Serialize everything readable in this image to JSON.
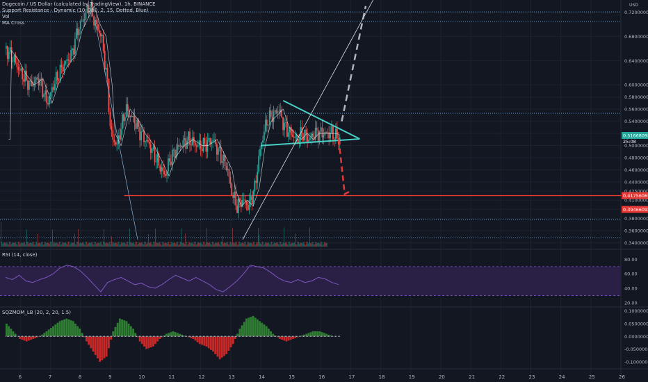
{
  "legend": {
    "symbol": "Dogecoin / US Dollar (calculated by TradingView), 1h, BINANCE",
    "indicator1": "Support Resistance - Dynamic (10, 300, 2, 15, Dotted, Blue)",
    "indicator2": "Vol",
    "indicator3": "MA Cross"
  },
  "currency": "USD",
  "price_axis": [
    "0.72000000",
    "0.68000000",
    "0.64000000",
    "0.60000000",
    "0.58000000",
    "0.56000000",
    "0.54000000",
    "0.52000000",
    "0.50000000",
    "0.48000000",
    "0.46000000",
    "0.44000000",
    "0.42500000",
    "0.41000000",
    "0.39500000",
    "0.38000000",
    "0.36000000",
    "0.34000000"
  ],
  "price_badges": {
    "current": "0.51668095",
    "countdown": "25:08",
    "support": "0.41756065",
    "lower": "0.39466092"
  },
  "rsi": {
    "title": "RSI (14, close)",
    "axis": [
      "80.00",
      "60.00",
      "40.00",
      "20.00"
    ],
    "upper": 70,
    "lower": 30
  },
  "sqzmom": {
    "title": "SQZMOM_LB (20, 2, 20, 1.5)",
    "axis": [
      "0.10000000",
      "0.05000000",
      "0.00000000",
      "-0.05000000",
      "-0.10000000"
    ]
  },
  "time_axis": [
    "6",
    "7",
    "8",
    "9",
    "10",
    "11",
    "12",
    "13",
    "14",
    "15",
    "16",
    "17",
    "18",
    "19",
    "20",
    "21",
    "22",
    "23",
    "24",
    "25",
    "26"
  ],
  "chart_data": {
    "type": "candlestick",
    "xlabel": "",
    "ylabel": "",
    "x_range": [
      5.5,
      26
    ],
    "ylim": [
      0.33,
      0.74
    ],
    "price_series": {
      "x": [
        5.5,
        5.8,
        6.0,
        6.3,
        6.6,
        6.9,
        7.1,
        7.4,
        7.7,
        7.9,
        8.1,
        8.3,
        8.5,
        8.7,
        8.9,
        9.0,
        9.2,
        9.5,
        9.8,
        10.0,
        10.3,
        10.6,
        10.8,
        11.0,
        11.3,
        11.6,
        11.9,
        12.1,
        12.4,
        12.6,
        12.9,
        13.0,
        13.2,
        13.4,
        13.6,
        13.8,
        14.0,
        14.2,
        14.4,
        14.6,
        14.8,
        15.0,
        15.2,
        15.4,
        15.6,
        15.8,
        16.0,
        16.2,
        16.4,
        16.6
      ],
      "close": [
        0.66,
        0.64,
        0.62,
        0.6,
        0.61,
        0.57,
        0.6,
        0.63,
        0.65,
        0.69,
        0.71,
        0.73,
        0.7,
        0.68,
        0.6,
        0.52,
        0.5,
        0.56,
        0.54,
        0.52,
        0.5,
        0.47,
        0.45,
        0.48,
        0.5,
        0.51,
        0.5,
        0.5,
        0.51,
        0.49,
        0.46,
        0.43,
        0.4,
        0.41,
        0.4,
        0.43,
        0.5,
        0.54,
        0.55,
        0.56,
        0.53,
        0.52,
        0.51,
        0.52,
        0.51,
        0.52,
        0.52,
        0.52,
        0.52,
        0.51
      ]
    },
    "horizontal_levels": [
      0.41756,
      0.7204,
      0.7044,
      0.5532,
      0.3775,
      0.3479
    ],
    "drawings": {
      "triangle_upper": [
        [
          14.75,
          0.574
        ],
        [
          17.3,
          0.511
        ]
      ],
      "triangle_lower": [
        [
          14.0,
          0.5
        ],
        [
          17.3,
          0.511
        ]
      ],
      "projection_up": [
        [
          16.7,
          0.54
        ],
        [
          17.5,
          0.73
        ]
      ],
      "projection_down": [
        [
          16.6,
          0.51
        ],
        [
          16.8,
          0.42
        ],
        [
          17.0,
          0.425
        ]
      ]
    },
    "rsi_ylim": [
      15,
      92
    ],
    "rsi_values": [
      55,
      52,
      58,
      50,
      48,
      52,
      55,
      60,
      68,
      72,
      70,
      64,
      55,
      45,
      35,
      48,
      52,
      55,
      50,
      45,
      47,
      42,
      40,
      45,
      52,
      58,
      54,
      50,
      55,
      50,
      45,
      38,
      35,
      42,
      50,
      60,
      72,
      70,
      68,
      62,
      55,
      50,
      48,
      52,
      48,
      50,
      55,
      53,
      48,
      45
    ],
    "sqz_ylim": [
      -0.125,
      0.11
    ],
    "sqz_values": [
      0.05,
      0.02,
      -0.01,
      -0.02,
      -0.01,
      0.0,
      0.02,
      0.04,
      0.06,
      0.07,
      0.06,
      0.03,
      -0.02,
      -0.06,
      -0.1,
      -0.08,
      0.02,
      0.07,
      0.06,
      0.03,
      -0.02,
      -0.05,
      -0.04,
      -0.01,
      0.01,
      0.02,
      0.01,
      0.0,
      -0.01,
      -0.03,
      -0.04,
      -0.06,
      -0.09,
      -0.07,
      -0.03,
      0.03,
      0.07,
      0.08,
      0.06,
      0.04,
      0.01,
      -0.01,
      -0.02,
      -0.01,
      0.0,
      0.01,
      0.02,
      0.02,
      0.01,
      0.0
    ]
  },
  "colors": {
    "background": "#131722",
    "grid": "#1e222d",
    "up": "#26a69a",
    "down": "#ef5350",
    "drawing": "#47d1c6",
    "support": "#e53935",
    "level": "#5b9bd5",
    "rsi_line": "#7e57c2",
    "rsi_band": "#2a1f45",
    "sqz_up": "#2e7d32",
    "sqz_down": "#c62828"
  }
}
